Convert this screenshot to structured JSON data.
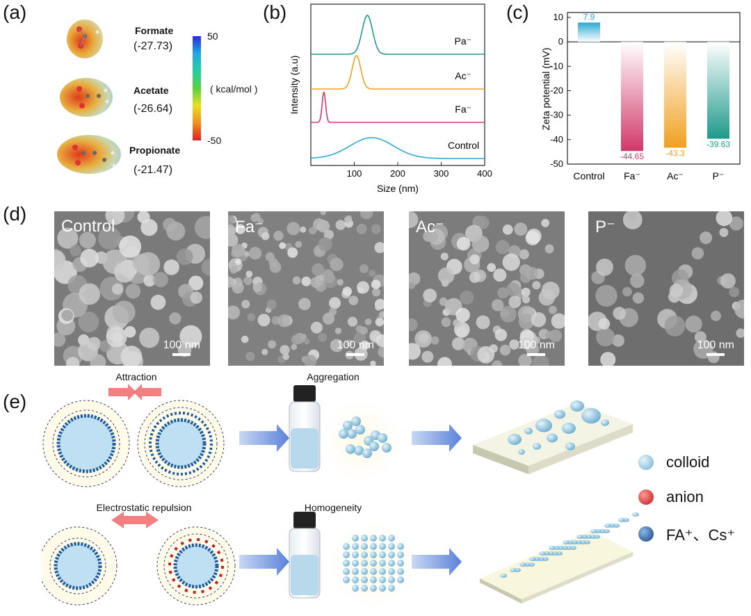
{
  "panels": {
    "a": "(a)",
    "b": "(b)",
    "c": "(c)",
    "d": "(d)",
    "e": "(e)"
  },
  "panel_a": {
    "molecules": [
      {
        "name": "Formate",
        "value": "(-27.73)"
      },
      {
        "name": "Acetate",
        "value": "(-26.64)"
      },
      {
        "name": "Propionate",
        "value": "(-21.47)"
      }
    ],
    "colorbar": {
      "max": "50",
      "min": "-50",
      "unit": "( kcal/mol )"
    }
  },
  "chart_data": [
    {
      "type": "line",
      "xlabel": "Size (nm)",
      "ylabel": "Intensity (a.u)",
      "xlim": [
        0,
        400
      ],
      "xticks": [
        "100",
        "200",
        "300",
        "400"
      ],
      "grid": false,
      "series": [
        {
          "name": "Pa⁻",
          "color": "#1e9a8c",
          "peak_x": 130
        },
        {
          "name": "Ac⁻",
          "color": "#f0a020",
          "peak_x": 105
        },
        {
          "name": "Fa⁻",
          "color": "#d2386a",
          "peak_x": 30
        },
        {
          "name": "Control",
          "color": "#2aa9d4",
          "peak_x": 140
        }
      ]
    },
    {
      "type": "bar",
      "ylabel": "Zeta potential (mV)",
      "ylim": [
        -50,
        12
      ],
      "yticks": [
        "10",
        "0",
        "-10",
        "-20",
        "-30",
        "-40",
        "-50"
      ],
      "categories": [
        "Control",
        "Fa⁻",
        "Ac⁻",
        "P⁻"
      ],
      "values": [
        7.9,
        -44.65,
        -43.3,
        -39.63
      ],
      "labels": [
        "7.9",
        "-44.65",
        "-43.3",
        "-39.63"
      ],
      "colors": [
        "#2aa9d4",
        "#d2386a",
        "#f0a020",
        "#1e9a8c"
      ]
    }
  ],
  "panel_d": {
    "images": [
      {
        "title": "Control",
        "scale": "100 nm"
      },
      {
        "title": "Fa⁻",
        "scale": "100 nm"
      },
      {
        "title": "Ac⁻",
        "scale": "100 nm"
      },
      {
        "title": "P⁻",
        "scale": "100 nm"
      }
    ]
  },
  "panel_e": {
    "row1": {
      "interaction": "Attraction",
      "state": "Aggregation"
    },
    "row2": {
      "interaction": "Electrostatic repulsion",
      "state": "Homogeneity"
    },
    "legend": [
      {
        "label": "colloid",
        "color": "#7ec4e0"
      },
      {
        "label": "anion",
        "color": "#d42020"
      },
      {
        "label": "FA⁺、Cs⁺",
        "color": "#1d5a9a"
      }
    ]
  }
}
